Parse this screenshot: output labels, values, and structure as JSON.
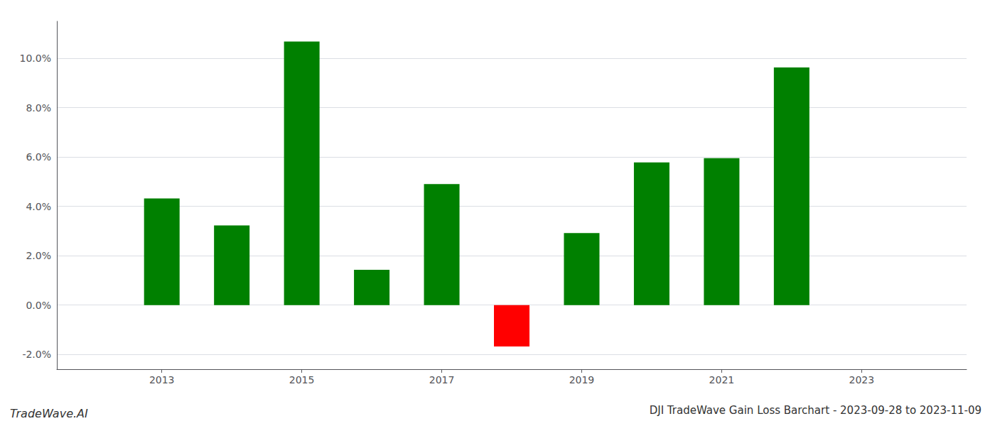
{
  "chart_data": {
    "type": "bar",
    "title": "DJI TradeWave Gain Loss Barchart - 2023-09-28 to 2023-11-09",
    "annotations": [
      "TradeWave.AI"
    ],
    "x": [
      2013,
      2014,
      2015,
      2016,
      2017,
      2018,
      2019,
      2020,
      2021,
      2022
    ],
    "values": [
      0.0432,
      0.0323,
      0.1068,
      0.0143,
      0.049,
      -0.0168,
      0.0292,
      0.0578,
      0.0595,
      0.0963
    ],
    "colors": [
      "#008000",
      "#008000",
      "#008000",
      "#008000",
      "#008000",
      "#ff0000",
      "#008000",
      "#008000",
      "#008000",
      "#008000"
    ],
    "xlim": [
      2011.5,
      2024.5
    ],
    "xticks": [
      2013,
      2015,
      2017,
      2019,
      2021,
      2023
    ],
    "ylim": [
      -0.026,
      0.115
    ],
    "yticks": [
      {
        "value": -0.02,
        "label": "-2.0%"
      },
      {
        "value": 0.0,
        "label": "0.0%"
      },
      {
        "value": 0.02,
        "label": "2.0%"
      },
      {
        "value": 0.04,
        "label": "4.0%"
      },
      {
        "value": 0.06,
        "label": "6.0%"
      },
      {
        "value": 0.08,
        "label": "8.0%"
      },
      {
        "value": 0.1,
        "label": "10.0%"
      }
    ],
    "grid": true
  }
}
